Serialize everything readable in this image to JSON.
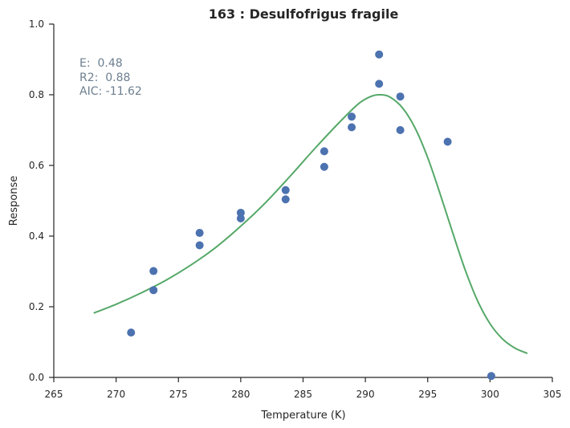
{
  "chart_data": {
    "type": "scatter",
    "title": "163 : Desulfofrigus fragile",
    "xlabel": "Temperature (K)",
    "ylabel": "Response",
    "xlim": [
      265,
      305
    ],
    "ylim": [
      0.0,
      1.0
    ],
    "xticks": [
      265,
      270,
      275,
      280,
      285,
      290,
      295,
      300,
      305
    ],
    "yticks": [
      0.0,
      0.2,
      0.4,
      0.6,
      0.8,
      1.0
    ],
    "xtick_labels": [
      "265",
      "270",
      "275",
      "280",
      "285",
      "290",
      "295",
      "300",
      "305"
    ],
    "ytick_labels": [
      "0.0",
      "0.2",
      "0.4",
      "0.6",
      "0.8",
      "1.0"
    ],
    "grid": false,
    "annotations": [
      "E:  0.48",
      "R2:  0.88",
      "AIC: -11.62"
    ],
    "points": [
      {
        "x": 271.2,
        "y": 0.127
      },
      {
        "x": 273.0,
        "y": 0.301
      },
      {
        "x": 273.0,
        "y": 0.247
      },
      {
        "x": 276.7,
        "y": 0.409
      },
      {
        "x": 276.7,
        "y": 0.374
      },
      {
        "x": 280.0,
        "y": 0.466
      },
      {
        "x": 280.0,
        "y": 0.45
      },
      {
        "x": 283.6,
        "y": 0.53
      },
      {
        "x": 283.6,
        "y": 0.504
      },
      {
        "x": 286.7,
        "y": 0.64
      },
      {
        "x": 286.7,
        "y": 0.596
      },
      {
        "x": 288.9,
        "y": 0.738
      },
      {
        "x": 288.9,
        "y": 0.708
      },
      {
        "x": 291.1,
        "y": 0.914
      },
      {
        "x": 291.1,
        "y": 0.831
      },
      {
        "x": 292.8,
        "y": 0.795
      },
      {
        "x": 292.8,
        "y": 0.7
      },
      {
        "x": 296.6,
        "y": 0.667
      },
      {
        "x": 300.1,
        "y": 0.004
      }
    ],
    "fit_curve": [
      {
        "x": 268.2,
        "y": 0.182
      },
      {
        "x": 270.0,
        "y": 0.207
      },
      {
        "x": 272.0,
        "y": 0.239
      },
      {
        "x": 274.0,
        "y": 0.275
      },
      {
        "x": 276.0,
        "y": 0.318
      },
      {
        "x": 278.0,
        "y": 0.368
      },
      {
        "x": 280.0,
        "y": 0.428
      },
      {
        "x": 282.0,
        "y": 0.495
      },
      {
        "x": 284.0,
        "y": 0.571
      },
      {
        "x": 286.0,
        "y": 0.65
      },
      {
        "x": 288.0,
        "y": 0.725
      },
      {
        "x": 289.5,
        "y": 0.776
      },
      {
        "x": 290.5,
        "y": 0.796
      },
      {
        "x": 291.2,
        "y": 0.8
      },
      {
        "x": 292.0,
        "y": 0.793
      },
      {
        "x": 293.0,
        "y": 0.762
      },
      {
        "x": 294.0,
        "y": 0.705
      },
      {
        "x": 295.0,
        "y": 0.622
      },
      {
        "x": 296.0,
        "y": 0.519
      },
      {
        "x": 297.0,
        "y": 0.41
      },
      {
        "x": 298.0,
        "y": 0.305
      },
      {
        "x": 299.0,
        "y": 0.217
      },
      {
        "x": 300.0,
        "y": 0.152
      },
      {
        "x": 301.0,
        "y": 0.109
      },
      {
        "x": 302.0,
        "y": 0.083
      },
      {
        "x": 303.0,
        "y": 0.068
      }
    ],
    "colors": {
      "points": "#4c72b0",
      "curve": "#55a868",
      "axes": "#262626",
      "annotation": "#6d7f90"
    }
  }
}
